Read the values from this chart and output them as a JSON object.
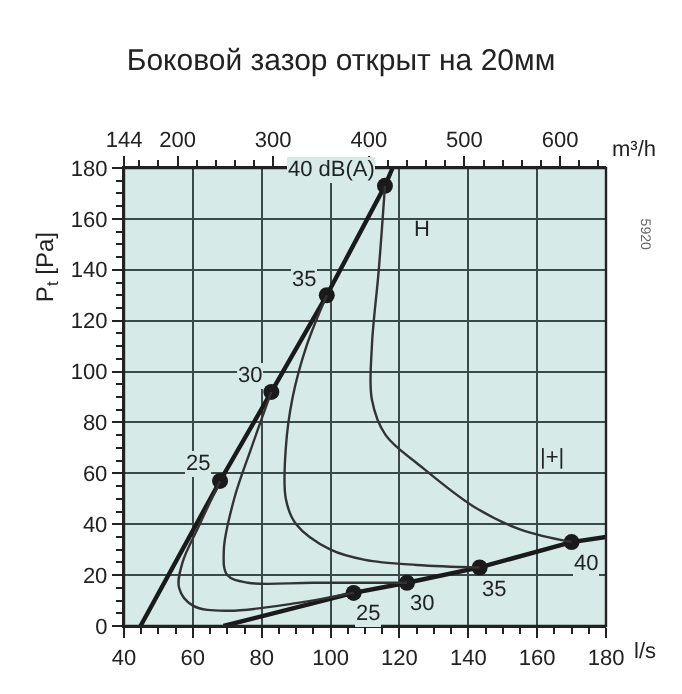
{
  "chart_data": {
    "type": "line",
    "title": "Боковой зазор открыт на 20мм",
    "ylabel": "P$_{t}$ [Pa]",
    "xlabel": "l/s",
    "x2label": "m³/h",
    "xlim": [
      40,
      180
    ],
    "xticks": [
      40,
      60,
      80,
      100,
      120,
      140,
      160,
      180
    ],
    "x2lim": [
      144,
      648
    ],
    "x2ticks": [
      144,
      200,
      300,
      400,
      500,
      600
    ],
    "ylim": [
      0,
      180
    ],
    "yticks": [
      0,
      20,
      40,
      60,
      80,
      100,
      120,
      140,
      160,
      180
    ],
    "grid": true,
    "line_style": "solid",
    "series": [
      {
        "color": "#1a1a1a",
        "marker": "none",
        "x": [
          44.8,
          67.9,
          82.8,
          98.9,
          115.8,
          118
        ],
        "values": [
          0,
          57,
          92,
          130,
          173,
          180
        ]
      },
      {
        "color": "#1a1a1a",
        "marker": "none",
        "x": [
          68.9,
          106.7,
          122.2,
          143.3,
          170,
          180
        ],
        "values": [
          0,
          13,
          17,
          23,
          33,
          35
        ]
      },
      {
        "type": "scatter",
        "color": "#1a1a1a",
        "marker": "circle",
        "x": [
          67.9,
          82.8,
          98.9,
          115.8
        ],
        "values": [
          57,
          92,
          130,
          173
        ]
      },
      {
        "type": "scatter",
        "color": "#1a1a1a",
        "marker": "circle",
        "x": [
          106.7,
          122.2,
          143.3,
          170
        ],
        "values": [
          13,
          17,
          23,
          33
        ]
      },
      {
        "type": "line",
        "color": "#333333",
        "marker": "none",
        "x": [
          67.9,
          62,
          57,
          56,
          60,
          70,
          90,
          106.7
        ],
        "values": [
          57,
          40,
          25,
          15,
          8,
          6,
          9,
          13
        ]
      },
      {
        "type": "line",
        "color": "#333333",
        "marker": "none",
        "x": [
          82.8,
          77,
          72,
          69,
          70,
          76,
          95,
          122.2
        ],
        "values": [
          92,
          70,
          50,
          30,
          20,
          17,
          17,
          17
        ]
      },
      {
        "type": "line",
        "color": "#333333",
        "marker": "none",
        "x": [
          98.9,
          93,
          89,
          87,
          87,
          90,
          100,
          110,
          125,
          143.3
        ],
        "values": [
          130,
          110,
          90,
          70,
          50,
          40,
          30,
          26,
          24,
          23
        ]
      },
      {
        "type": "line",
        "color": "#333333",
        "marker": "none",
        "x": [
          115.8,
          114,
          112,
          112,
          116,
          126,
          141.5,
          155,
          170
        ],
        "values": [
          173,
          140,
          110,
          89,
          75,
          63,
          47,
          38,
          33
        ]
      }
    ],
    "annotations": [
      {
        "text": "40 dB(A)",
        "x": 115.8,
        "y": 173
      },
      {
        "text": "35",
        "x": 98.9,
        "y": 130
      },
      {
        "text": "30",
        "x": 82.8,
        "y": 92
      },
      {
        "text": "25",
        "x": 67.9,
        "y": 57
      },
      {
        "text": "25",
        "x": 106.7,
        "y": 13
      },
      {
        "text": "30",
        "x": 122.2,
        "y": 17
      },
      {
        "text": "35",
        "x": 143.3,
        "y": 23
      },
      {
        "text": "40",
        "x": 170,
        "y": 33
      },
      "H",
      "|+|",
      "5920"
    ]
  }
}
